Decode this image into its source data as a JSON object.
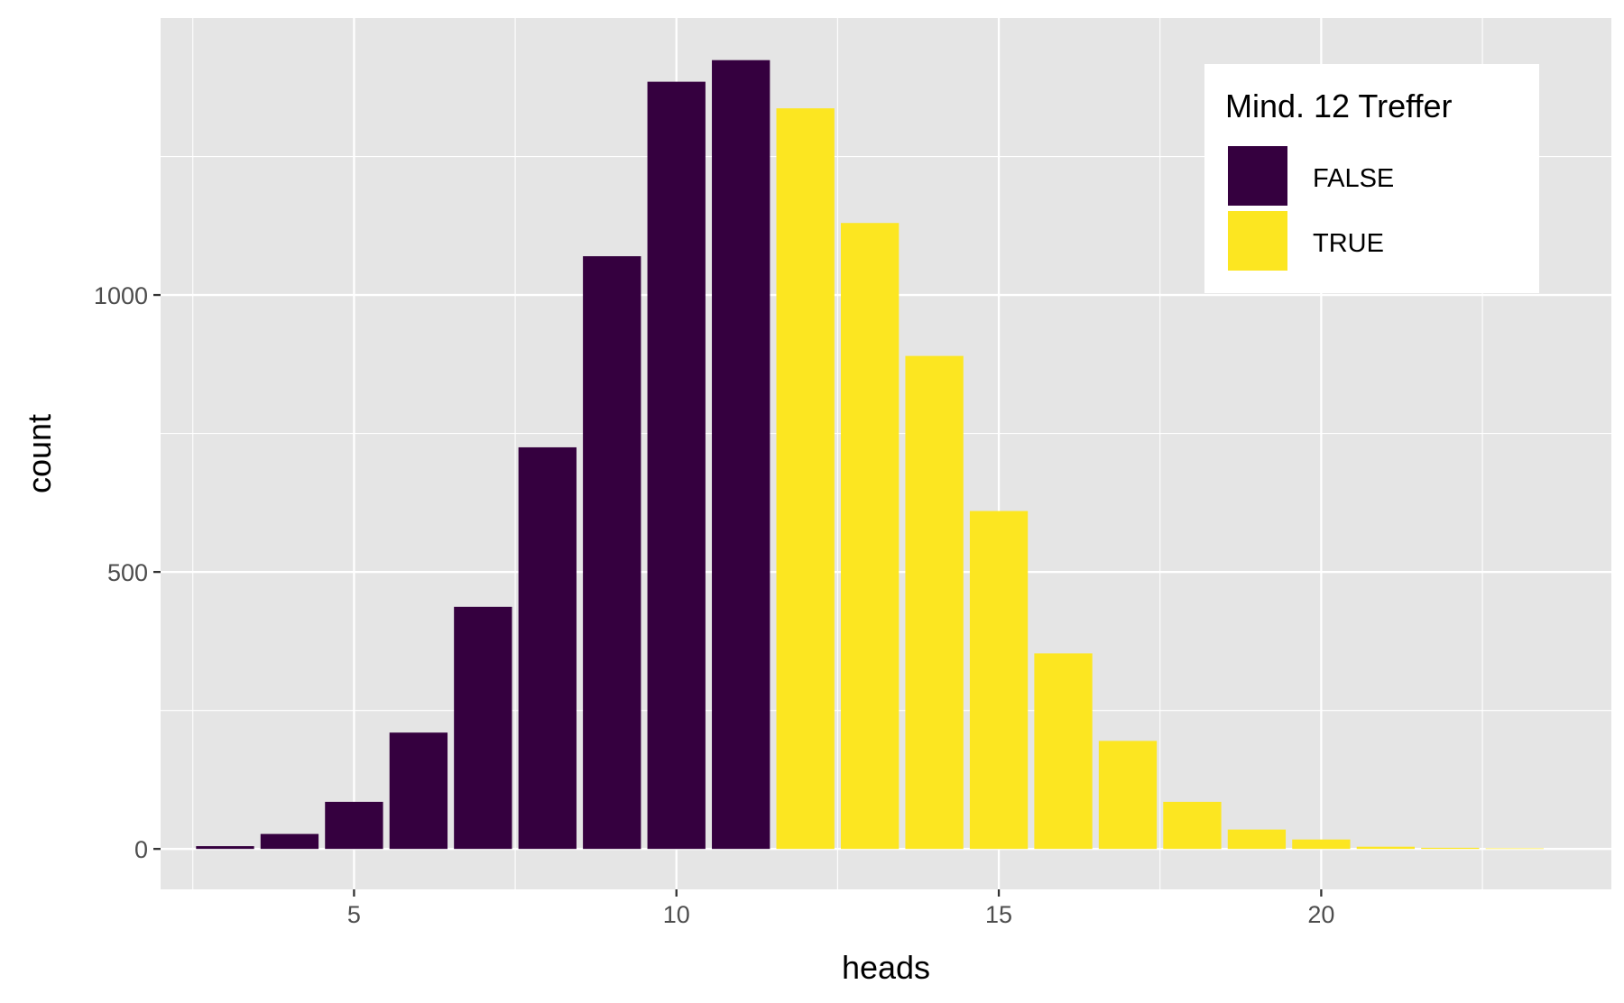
{
  "chart_data": {
    "type": "bar",
    "xlabel": "heads",
    "ylabel": "count",
    "x": [
      3,
      4,
      5,
      6,
      7,
      8,
      9,
      10,
      11,
      12,
      13,
      14,
      15,
      16,
      17,
      18,
      19,
      20,
      21,
      22,
      23
    ],
    "values": [
      5,
      27,
      85,
      210,
      437,
      725,
      1070,
      1385,
      1424,
      1337,
      1130,
      890,
      610,
      353,
      195,
      85,
      35,
      17,
      4,
      2,
      1
    ],
    "fill_group": [
      "FALSE",
      "FALSE",
      "FALSE",
      "FALSE",
      "FALSE",
      "FALSE",
      "FALSE",
      "FALSE",
      "FALSE",
      "TRUE",
      "TRUE",
      "TRUE",
      "TRUE",
      "TRUE",
      "TRUE",
      "TRUE",
      "TRUE",
      "TRUE",
      "TRUE",
      "TRUE",
      "TRUE"
    ],
    "xlim": [
      2,
      24.5
    ],
    "ylim": [
      -73,
      1500
    ],
    "x_ticks": [
      5,
      10,
      15,
      20
    ],
    "x_tick_labels": [
      "5",
      "10",
      "15",
      "20"
    ],
    "y_ticks": [
      0,
      500,
      1000
    ],
    "y_tick_labels": [
      "0",
      "500",
      "1000"
    ],
    "grid": true,
    "panel_background": "#e5e5e5",
    "grid_color": "#ffffff",
    "legend": {
      "title": "Mind. 12 Treffer",
      "placement": "top-right",
      "entries": [
        {
          "label": "FALSE",
          "color": "#35003f"
        },
        {
          "label": "TRUE",
          "color": "#fce621"
        }
      ]
    }
  }
}
